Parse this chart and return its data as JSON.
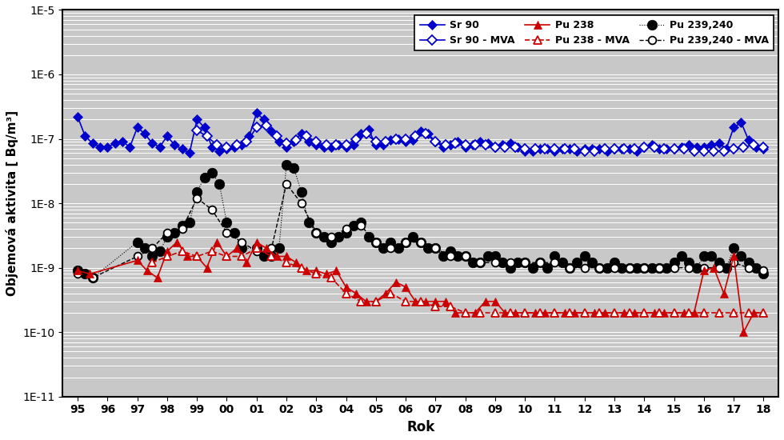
{
  "xlabel": "Rok",
  "ylabel": "Objemová aktivita [ Bq/m³]",
  "xlim": [
    1994.5,
    2018.5
  ],
  "background_color": "#c8c8c8",
  "grid_color": "#ffffff",
  "sr90": {
    "x": [
      1995.0,
      1995.25,
      1995.5,
      1995.75,
      1996.0,
      1996.25,
      1996.5,
      1996.75,
      1997.0,
      1997.25,
      1997.5,
      1997.75,
      1998.0,
      1998.25,
      1998.5,
      1998.75,
      1999.0,
      1999.25,
      1999.5,
      1999.75,
      2000.0,
      2000.25,
      2000.5,
      2000.75,
      2001.0,
      2001.25,
      2001.5,
      2001.75,
      2002.0,
      2002.25,
      2002.5,
      2002.75,
      2003.0,
      2003.25,
      2003.5,
      2003.75,
      2004.0,
      2004.25,
      2004.5,
      2004.75,
      2005.0,
      2005.25,
      2005.5,
      2005.75,
      2006.0,
      2006.25,
      2006.5,
      2006.75,
      2007.0,
      2007.25,
      2007.5,
      2007.75,
      2008.0,
      2008.25,
      2008.5,
      2008.75,
      2009.0,
      2009.25,
      2009.5,
      2009.75,
      2010.0,
      2010.25,
      2010.5,
      2010.75,
      2011.0,
      2011.25,
      2011.5,
      2011.75,
      2012.0,
      2012.25,
      2012.5,
      2012.75,
      2013.0,
      2013.25,
      2013.5,
      2013.75,
      2014.0,
      2014.25,
      2014.5,
      2014.75,
      2015.0,
      2015.25,
      2015.5,
      2015.75,
      2016.0,
      2016.25,
      2016.5,
      2016.75,
      2017.0,
      2017.25,
      2017.5,
      2017.75,
      2018.0
    ],
    "y": [
      2.2e-07,
      1.1e-07,
      8.5e-08,
      7.5e-08,
      7.5e-08,
      8.5e-08,
      9e-08,
      7.5e-08,
      1.5e-07,
      1.2e-07,
      8.5e-08,
      7.5e-08,
      1.1e-07,
      8e-08,
      7e-08,
      6e-08,
      2e-07,
      1.5e-07,
      7.5e-08,
      6.5e-08,
      7e-08,
      7.5e-08,
      8e-08,
      1.1e-07,
      2.5e-07,
      2e-07,
      1.3e-07,
      9e-08,
      7.5e-08,
      9e-08,
      1.2e-07,
      9e-08,
      8e-08,
      7.5e-08,
      7.5e-08,
      8e-08,
      7.5e-08,
      8e-08,
      1.2e-07,
      1.4e-07,
      8e-08,
      8e-08,
      9.5e-08,
      1e-07,
      9e-08,
      9.5e-08,
      1.3e-07,
      1.2e-07,
      9e-08,
      7.5e-08,
      8e-08,
      9e-08,
      7.5e-08,
      8e-08,
      9e-08,
      8.5e-08,
      7.5e-08,
      8e-08,
      8.5e-08,
      7.5e-08,
      6.5e-08,
      6.5e-08,
      7e-08,
      7e-08,
      6.5e-08,
      7e-08,
      7e-08,
      6.5e-08,
      7e-08,
      7e-08,
      7e-08,
      6.5e-08,
      7e-08,
      7e-08,
      7e-08,
      6.5e-08,
      7.5e-08,
      8e-08,
      7e-08,
      7e-08,
      7e-08,
      7.5e-08,
      8e-08,
      7.5e-08,
      7.5e-08,
      8e-08,
      8.5e-08,
      7e-08,
      1.5e-07,
      1.8e-07,
      9.5e-08,
      7.5e-08,
      7e-08
    ]
  },
  "sr90_mva": {
    "x": [
      1999.0,
      1999.33,
      1999.67,
      2000.0,
      2000.33,
      2000.67,
      2001.0,
      2001.33,
      2001.67,
      2002.0,
      2002.33,
      2002.67,
      2003.0,
      2003.33,
      2003.67,
      2004.0,
      2004.33,
      2004.67,
      2005.0,
      2005.33,
      2005.67,
      2006.0,
      2006.33,
      2006.67,
      2007.0,
      2007.33,
      2007.67,
      2008.0,
      2008.33,
      2008.67,
      2009.0,
      2009.33,
      2009.67,
      2010.0,
      2010.33,
      2010.67,
      2011.0,
      2011.33,
      2011.67,
      2012.0,
      2012.33,
      2012.67,
      2013.0,
      2013.33,
      2013.67,
      2014.0,
      2014.33,
      2014.67,
      2015.0,
      2015.33,
      2015.67,
      2016.0,
      2016.33,
      2016.67,
      2017.0,
      2017.33,
      2017.67,
      2018.0
    ],
    "y": [
      1.35e-07,
      1.1e-07,
      8e-08,
      7.5e-08,
      8e-08,
      9e-08,
      1.5e-07,
      1.6e-07,
      1.1e-07,
      8.5e-08,
      9.5e-08,
      1.1e-07,
      9e-08,
      8e-08,
      8e-08,
      8e-08,
      1e-07,
      1.2e-07,
      9e-08,
      9e-08,
      1e-07,
      1e-07,
      1.1e-07,
      1.2e-07,
      9e-08,
      8e-08,
      8.5e-08,
      8e-08,
      8e-08,
      8e-08,
      7.5e-08,
      7.5e-08,
      7.5e-08,
      7e-08,
      7e-08,
      7e-08,
      7e-08,
      7e-08,
      7e-08,
      6.5e-08,
      6.5e-08,
      7e-08,
      7e-08,
      7e-08,
      7e-08,
      7.5e-08,
      7.5e-08,
      7e-08,
      7e-08,
      7e-08,
      6.5e-08,
      6.5e-08,
      6.5e-08,
      6.5e-08,
      7e-08,
      7.5e-08,
      8e-08,
      7.5e-08
    ]
  },
  "pu238": {
    "x": [
      1995.0,
      1995.4,
      1997.0,
      1997.33,
      1997.67,
      1998.0,
      1998.33,
      1998.67,
      1999.0,
      1999.33,
      1999.67,
      2000.0,
      2000.33,
      2000.67,
      2001.0,
      2001.33,
      2001.67,
      2002.0,
      2002.33,
      2002.67,
      2003.0,
      2003.33,
      2003.67,
      2004.0,
      2004.33,
      2004.67,
      2005.0,
      2005.33,
      2005.67,
      2006.0,
      2006.33,
      2006.67,
      2007.0,
      2007.33,
      2007.67,
      2008.0,
      2008.33,
      2008.67,
      2009.0,
      2009.33,
      2009.67,
      2010.0,
      2010.33,
      2010.67,
      2011.0,
      2011.33,
      2011.67,
      2012.0,
      2012.33,
      2012.67,
      2013.0,
      2013.33,
      2013.67,
      2014.0,
      2014.33,
      2014.67,
      2015.0,
      2015.33,
      2015.67,
      2016.0,
      2016.33,
      2016.67,
      2017.0,
      2017.33,
      2017.67,
      2018.0
    ],
    "y": [
      9e-10,
      8e-10,
      1.3e-09,
      9e-10,
      7e-10,
      1.8e-09,
      2.5e-09,
      1.5e-09,
      1.5e-09,
      1e-09,
      2.5e-09,
      1.5e-09,
      2e-09,
      1.2e-09,
      2.5e-09,
      2e-09,
      1.5e-09,
      1.5e-09,
      1.2e-09,
      9e-10,
      9e-10,
      8e-10,
      9e-10,
      5e-10,
      4e-10,
      3e-10,
      3e-10,
      4e-10,
      6e-10,
      5e-10,
      3e-10,
      3e-10,
      3e-10,
      3e-10,
      2e-10,
      2e-10,
      2e-10,
      3e-10,
      3e-10,
      2e-10,
      2e-10,
      2e-10,
      2e-10,
      2e-10,
      2e-10,
      2e-10,
      2e-10,
      2e-10,
      2e-10,
      2e-10,
      2e-10,
      2e-10,
      2e-10,
      2e-10,
      2e-10,
      2e-10,
      2e-10,
      2e-10,
      2e-10,
      9e-10,
      1e-09,
      4e-10,
      1.5e-09,
      1e-10,
      2e-10,
      2e-10
    ]
  },
  "pu238_mva": {
    "x": [
      1997.5,
      1998.0,
      1998.5,
      1999.0,
      1999.5,
      2000.0,
      2000.5,
      2001.0,
      2001.5,
      2002.0,
      2002.5,
      2003.0,
      2003.5,
      2004.0,
      2004.5,
      2005.0,
      2005.5,
      2006.0,
      2006.5,
      2007.0,
      2007.5,
      2008.0,
      2008.5,
      2009.0,
      2009.5,
      2010.0,
      2010.5,
      2011.0,
      2011.5,
      2012.0,
      2012.5,
      2013.0,
      2013.5,
      2014.0,
      2014.5,
      2015.0,
      2015.5,
      2016.0,
      2016.5,
      2017.0,
      2017.5,
      2018.0
    ],
    "y": [
      1.2e-09,
      1.5e-09,
      1.8e-09,
      1.5e-09,
      1.8e-09,
      1.5e-09,
      1.5e-09,
      2e-09,
      1.5e-09,
      1.2e-09,
      1e-09,
      8e-10,
      7e-10,
      4e-10,
      3e-10,
      3e-10,
      4e-10,
      3e-10,
      3e-10,
      2.5e-10,
      2.5e-10,
      2e-10,
      2e-10,
      2e-10,
      2e-10,
      2e-10,
      2e-10,
      2e-10,
      2e-10,
      2e-10,
      2e-10,
      2e-10,
      2e-10,
      2e-10,
      2e-10,
      2e-10,
      2e-10,
      2e-10,
      2e-10,
      2e-10,
      2e-10,
      2e-10
    ]
  },
  "pu239240": {
    "x": [
      1995.0,
      1995.25,
      1995.5,
      1997.0,
      1997.25,
      1997.5,
      1997.75,
      1998.0,
      1998.25,
      1998.5,
      1998.75,
      1999.0,
      1999.25,
      1999.5,
      1999.75,
      2000.0,
      2000.25,
      2000.5,
      2001.0,
      2001.25,
      2001.5,
      2001.75,
      2002.0,
      2002.25,
      2002.5,
      2002.75,
      2003.0,
      2003.25,
      2003.5,
      2003.75,
      2004.0,
      2004.25,
      2004.5,
      2004.75,
      2005.0,
      2005.25,
      2005.5,
      2005.75,
      2006.0,
      2006.25,
      2006.5,
      2006.75,
      2007.0,
      2007.25,
      2007.5,
      2007.75,
      2008.0,
      2008.25,
      2008.5,
      2008.75,
      2009.0,
      2009.25,
      2009.5,
      2009.75,
      2010.0,
      2010.25,
      2010.5,
      2010.75,
      2011.0,
      2011.25,
      2011.5,
      2011.75,
      2012.0,
      2012.25,
      2012.5,
      2012.75,
      2013.0,
      2013.25,
      2013.5,
      2013.75,
      2014.0,
      2014.25,
      2014.5,
      2014.75,
      2015.0,
      2015.25,
      2015.5,
      2015.75,
      2016.0,
      2016.25,
      2016.5,
      2016.75,
      2017.0,
      2017.25,
      2017.5,
      2017.75,
      2018.0
    ],
    "y": [
      9e-10,
      8e-10,
      7e-10,
      2.5e-09,
      2e-09,
      1.5e-09,
      1.8e-09,
      3e-09,
      3.5e-09,
      4.5e-09,
      5e-09,
      1.5e-08,
      2.5e-08,
      3e-08,
      2e-08,
      5e-09,
      3.5e-09,
      2e-09,
      2e-09,
      1.5e-09,
      1.5e-09,
      2e-09,
      4e-08,
      3.5e-08,
      1.5e-08,
      5e-09,
      3.5e-09,
      3e-09,
      2.5e-09,
      3e-09,
      3.5e-09,
      4.5e-09,
      5e-09,
      3e-09,
      2.5e-09,
      2e-09,
      2.5e-09,
      2e-09,
      2.5e-09,
      3e-09,
      2.5e-09,
      2e-09,
      2e-09,
      1.5e-09,
      1.8e-09,
      1.5e-09,
      1.5e-09,
      1.2e-09,
      1.2e-09,
      1.5e-09,
      1.5e-09,
      1.2e-09,
      1e-09,
      1.2e-09,
      1.2e-09,
      1e-09,
      1.2e-09,
      1e-09,
      1.5e-09,
      1.2e-09,
      1e-09,
      1.2e-09,
      1.5e-09,
      1.2e-09,
      1e-09,
      1e-09,
      1.2e-09,
      1e-09,
      1e-09,
      1e-09,
      1e-09,
      1e-09,
      1e-09,
      1e-09,
      1.2e-09,
      1.5e-09,
      1.2e-09,
      1e-09,
      1.5e-09,
      1.5e-09,
      1.2e-09,
      1e-09,
      2e-09,
      1.5e-09,
      1.2e-09,
      1e-09,
      8e-10
    ]
  },
  "pu239240_mva": {
    "x": [
      1995.0,
      1995.5,
      1997.0,
      1997.5,
      1998.0,
      1998.5,
      1999.0,
      1999.5,
      2000.0,
      2000.5,
      2001.0,
      2001.5,
      2002.0,
      2002.5,
      2003.0,
      2003.5,
      2004.0,
      2004.5,
      2005.0,
      2005.5,
      2006.0,
      2006.5,
      2007.0,
      2007.5,
      2008.0,
      2008.5,
      2009.0,
      2009.5,
      2010.0,
      2010.5,
      2011.0,
      2011.5,
      2012.0,
      2012.5,
      2013.0,
      2013.5,
      2014.0,
      2014.5,
      2015.0,
      2015.5,
      2016.0,
      2016.5,
      2017.0,
      2017.5,
      2018.0
    ],
    "y": [
      8e-10,
      7e-10,
      1.5e-09,
      2e-09,
      3.5e-09,
      4e-09,
      1.2e-08,
      8e-09,
      3.5e-09,
      2.5e-09,
      1.8e-09,
      2e-09,
      2e-08,
      1e-08,
      3.5e-09,
      3e-09,
      4e-09,
      4.5e-09,
      2.5e-09,
      2e-09,
      2.5e-09,
      2.5e-09,
      2e-09,
      1.5e-09,
      1.5e-09,
      1.2e-09,
      1.2e-09,
      1.2e-09,
      1.2e-09,
      1.2e-09,
      1.2e-09,
      1e-09,
      1e-09,
      1e-09,
      1e-09,
      1e-09,
      1e-09,
      1e-09,
      1e-09,
      1e-09,
      1e-09,
      1e-09,
      1.2e-09,
      1e-09,
      9e-10
    ]
  },
  "colors": {
    "sr90": "#0000cc",
    "sr90_mva": "#0000cc",
    "pu238": "#cc0000",
    "pu238_mva": "#cc0000",
    "pu239240": "#000000",
    "pu239240_mva": "#000000"
  },
  "legend": {
    "sr90_label": "Sr 90",
    "sr90_mva_label": "Sr 90 - MVA",
    "pu238_label": "Pu 238",
    "pu238_mva_label": "Pu 238 - MVA",
    "pu239240_label": "Pu 239,240",
    "pu239240_mva_label": "Pu 239,240 - MVA"
  },
  "xtick_labels": [
    "95",
    "96",
    "97",
    "98",
    "99",
    "00",
    "01",
    "02",
    "03",
    "04",
    "05",
    "06",
    "07",
    "08",
    "09",
    "10",
    "11",
    "12",
    "13",
    "14",
    "15",
    "16",
    "17",
    "18"
  ],
  "xtick_positions": [
    1995,
    1996,
    1997,
    1998,
    1999,
    2000,
    2001,
    2002,
    2003,
    2004,
    2005,
    2006,
    2007,
    2008,
    2009,
    2010,
    2011,
    2012,
    2013,
    2014,
    2015,
    2016,
    2017,
    2018
  ]
}
